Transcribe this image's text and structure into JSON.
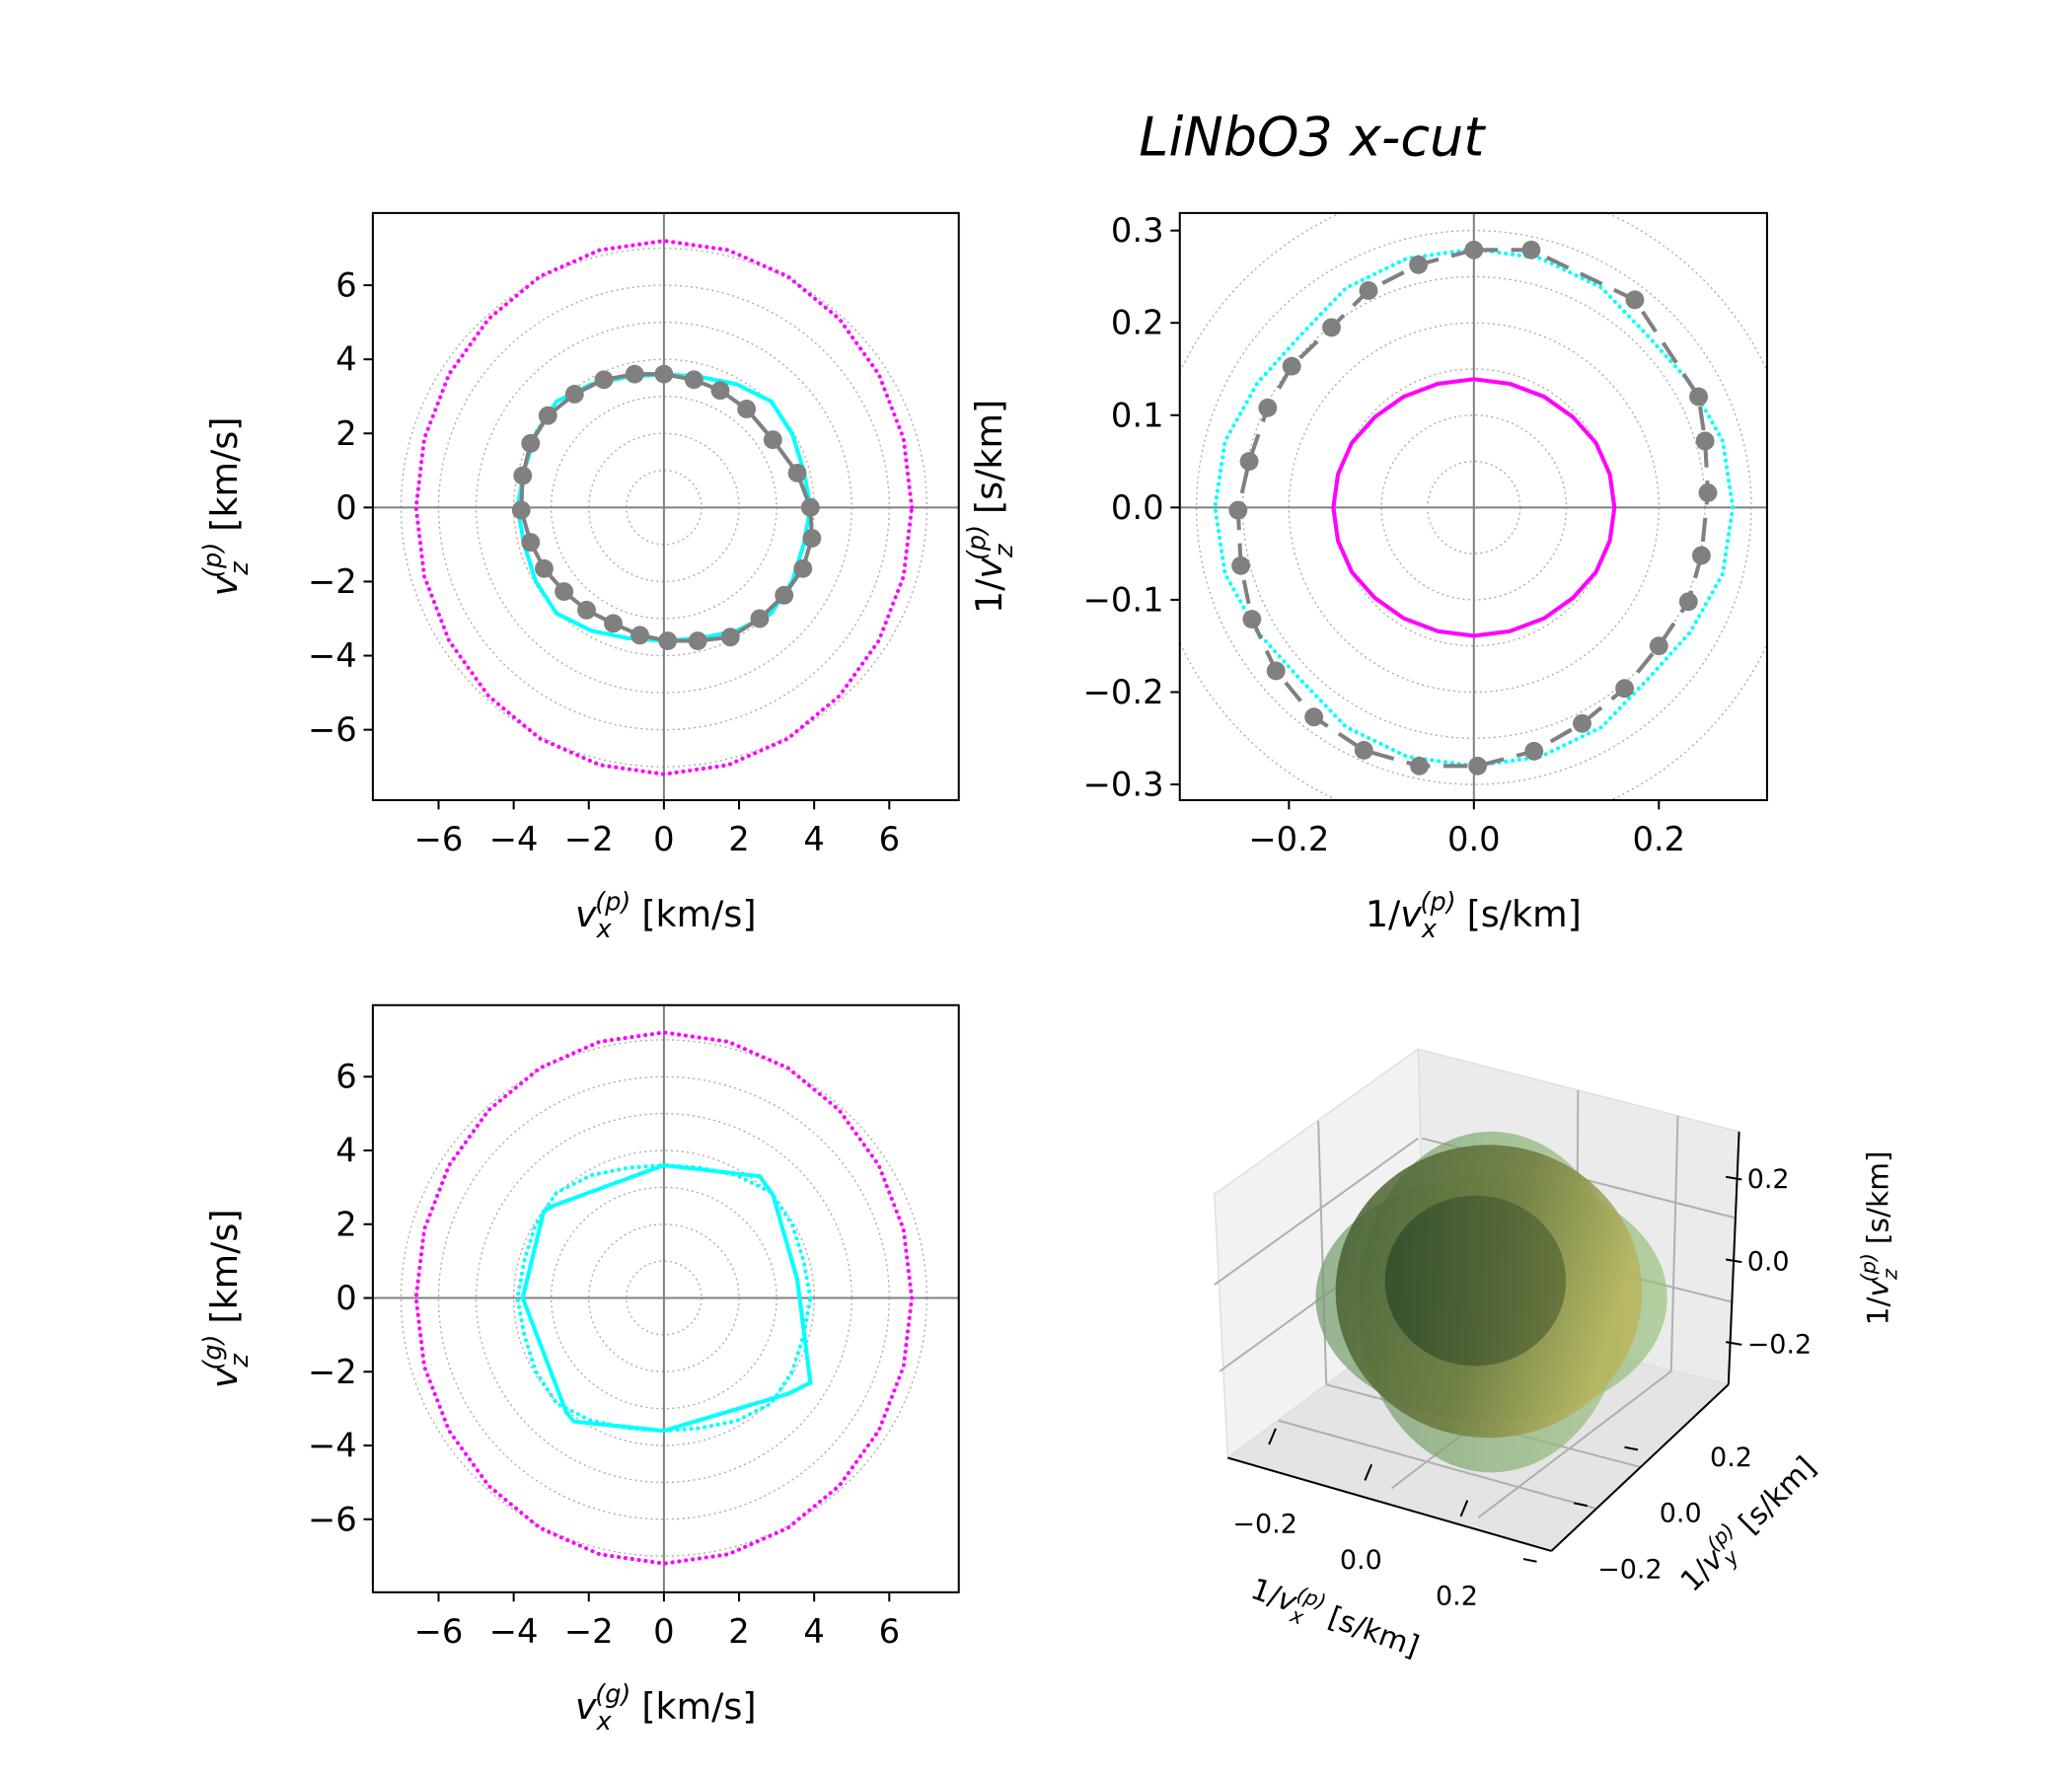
{
  "title": "LiNbO3 x-cut",
  "chart_data": [
    {
      "type": "line",
      "xlabel": {
        "symbol": "v",
        "sub": "x",
        "sup": "(p)",
        "unit": "[km/s]"
      },
      "ylabel": {
        "symbol": "v",
        "sub": "z",
        "sup": "(p)",
        "unit": "[km/s]"
      },
      "xlim": [
        -7.75,
        7.85
      ],
      "ylim": [
        -7.9,
        7.95
      ],
      "xticks": [
        {
          "value": -6,
          "label": "−6"
        },
        {
          "value": -4,
          "label": "−4"
        },
        {
          "value": -2,
          "label": "−2"
        },
        0,
        2,
        4,
        6
      ],
      "yticks": [
        {
          "value": -6,
          "label": "−6"
        },
        {
          "value": -4,
          "label": "−4"
        },
        {
          "value": -2,
          "label": "−2"
        },
        0,
        2,
        4,
        6
      ],
      "rgrid": [
        1,
        2,
        3,
        4,
        5,
        6,
        7
      ],
      "series": [
        {
          "color": "#ff00ff",
          "style": "dotted",
          "x": [
            6.6,
            6.38,
            5.72,
            4.67,
            3.3,
            1.71,
            0,
            -1.71,
            -3.3,
            -4.67,
            -5.72,
            -6.38,
            -6.6,
            -6.38,
            -5.72,
            -4.67,
            -3.3,
            -1.71,
            0,
            1.71,
            3.3,
            4.67,
            5.72,
            6.38
          ],
          "y": [
            0,
            1.86,
            3.6,
            5.09,
            6.24,
            6.95,
            7.2,
            6.95,
            6.24,
            5.09,
            3.6,
            1.86,
            0,
            -1.86,
            -3.6,
            -5.09,
            -6.24,
            -6.95,
            -7.2,
            -6.95,
            -6.24,
            -5.09,
            -3.6,
            -1.86
          ]
        },
        {
          "color": "#00ffff",
          "style": "solid",
          "x": [
            3.9,
            3.72,
            3.42,
            2.86,
            1.93,
            0.95,
            0,
            -0.95,
            -1.93,
            -2.86,
            -3.42,
            -3.72,
            -3.9,
            -3.72,
            -3.42,
            -2.86,
            -1.93,
            -0.95,
            0,
            0.95,
            1.93,
            2.86,
            3.42,
            3.72
          ],
          "y": [
            0,
            1.0,
            1.98,
            2.86,
            3.33,
            3.53,
            3.6,
            3.53,
            3.33,
            2.86,
            1.98,
            1.0,
            0,
            -1.0,
            -1.98,
            -2.86,
            -3.33,
            -3.53,
            -3.6,
            -3.53,
            -3.33,
            -2.86,
            -1.98,
            -1.0
          ]
        },
        {
          "color": "#808080",
          "style": "markers",
          "line": "solid",
          "x": [
            0,
            0.8,
            1.5,
            2.2,
            2.9,
            3.55,
            3.9,
            3.94,
            3.7,
            3.2,
            2.55,
            1.77,
            0.9,
            0.1,
            -0.64,
            -1.35,
            -2.06,
            -2.66,
            -3.19,
            -3.55,
            -3.8,
            -3.76,
            -3.55,
            -3.09,
            -2.38,
            -1.6,
            -0.78
          ],
          "y": [
            3.6,
            3.45,
            3.16,
            2.66,
            1.83,
            0.93,
            0,
            -0.83,
            -1.65,
            -2.37,
            -3.0,
            -3.5,
            -3.6,
            -3.6,
            -3.45,
            -3.13,
            -2.77,
            -2.27,
            -1.65,
            -0.94,
            -0.07,
            0.86,
            1.73,
            2.48,
            3.06,
            3.45,
            3.6
          ]
        }
      ]
    },
    {
      "type": "line",
      "xlabel": {
        "prefix": "1/",
        "symbol": "v",
        "sub": "x",
        "sup": "(p)",
        "unit": "[s/km]"
      },
      "ylabel": {
        "prefix": "1/",
        "symbol": "v",
        "sub": "z",
        "sup": "(p)",
        "unit": "[s/km]"
      },
      "xlim": [
        -0.318,
        0.317
      ],
      "ylim": [
        -0.317,
        0.319
      ],
      "xticks": [
        {
          "value": -0.2,
          "label": "−0.2"
        },
        {
          "value": 0,
          "label": "0.0"
        },
        0.2
      ],
      "yticks": [
        {
          "value": -0.3,
          "label": "−0.3"
        },
        {
          "value": -0.2,
          "label": "−0.2"
        },
        {
          "value": -0.1,
          "label": "−0.1"
        },
        {
          "value": 0,
          "label": "0.0"
        },
        0.1,
        0.2,
        0.3
      ],
      "rgrid": [
        0.05,
        0.1,
        0.15,
        0.2,
        0.25,
        0.3,
        0.35
      ],
      "series": [
        {
          "color": "#ff00ff",
          "style": "solid",
          "x": [
            0.152,
            0.147,
            0.132,
            0.107,
            0.076,
            0.039,
            0,
            -0.039,
            -0.076,
            -0.107,
            -0.132,
            -0.147,
            -0.152,
            -0.147,
            -0.132,
            -0.107,
            -0.076,
            -0.039,
            0,
            0.039,
            0.076,
            0.107,
            0.132,
            0.147
          ],
          "y": [
            0,
            0.036,
            0.07,
            0.098,
            0.12,
            0.134,
            0.139,
            0.134,
            0.12,
            0.098,
            0.07,
            0.036,
            0,
            -0.036,
            -0.07,
            -0.098,
            -0.12,
            -0.134,
            -0.139,
            -0.134,
            -0.12,
            -0.098,
            -0.07,
            -0.036
          ]
        },
        {
          "color": "#00ffff",
          "style": "dotted",
          "x": [
            0.28,
            0.269,
            0.234,
            0.187,
            0.138,
            0.072,
            0,
            -0.072,
            -0.138,
            -0.187,
            -0.234,
            -0.269,
            -0.28,
            -0.269,
            -0.234,
            -0.187,
            -0.138,
            -0.072,
            0,
            0.072,
            0.138,
            0.187,
            0.234,
            0.269
          ],
          "y": [
            0,
            0.072,
            0.135,
            0.187,
            0.238,
            0.27,
            0.28,
            0.27,
            0.238,
            0.187,
            0.135,
            0.072,
            0,
            -0.072,
            -0.135,
            -0.187,
            -0.238,
            -0.27,
            -0.28,
            -0.27,
            -0.238,
            -0.187,
            -0.135,
            -0.072
          ]
        },
        {
          "color": "#808080",
          "style": "markers",
          "line": "dashed",
          "x": [
            0,
            0.062,
            0.174,
            0.243,
            0.25,
            0.253,
            0.246,
            0.232,
            0.2,
            0.163,
            0.117,
            0.065,
            0.004,
            -0.059,
            -0.119,
            -0.173,
            -0.214,
            -0.24,
            -0.252,
            -0.255,
            -0.243,
            -0.223,
            -0.197,
            -0.154,
            -0.114,
            -0.06
          ],
          "y": [
            0.279,
            0.279,
            0.225,
            0.12,
            0.072,
            0.016,
            -0.052,
            -0.102,
            -0.15,
            -0.196,
            -0.234,
            -0.264,
            -0.28,
            -0.28,
            -0.263,
            -0.227,
            -0.177,
            -0.121,
            -0.063,
            -0.003,
            0.05,
            0.108,
            0.153,
            0.195,
            0.235,
            0.263
          ]
        }
      ]
    },
    {
      "type": "line",
      "xlabel": {
        "symbol": "v",
        "sub": "x",
        "sup": "(g)",
        "unit": "[km/s]"
      },
      "ylabel": {
        "symbol": "v",
        "sub": "z",
        "sup": "(g)",
        "unit": "[km/s]"
      },
      "xlim": [
        -7.75,
        7.85
      ],
      "ylim": [
        -7.98,
        7.94
      ],
      "xticks": [
        {
          "value": -6,
          "label": "−6"
        },
        {
          "value": -4,
          "label": "−4"
        },
        {
          "value": -2,
          "label": "−2"
        },
        0,
        2,
        4,
        6
      ],
      "yticks": [
        {
          "value": -6,
          "label": "−6"
        },
        {
          "value": -4,
          "label": "−4"
        },
        {
          "value": -2,
          "label": "−2"
        },
        0,
        2,
        4,
        6
      ],
      "rgrid": [
        1,
        2,
        3,
        4,
        5,
        6,
        7
      ],
      "series": [
        {
          "color": "#ff00ff",
          "style": "dotted",
          "x": [
            6.6,
            6.38,
            5.72,
            4.67,
            3.3,
            1.71,
            0,
            -1.71,
            -3.3,
            -4.67,
            -5.72,
            -6.38,
            -6.6,
            -6.38,
            -5.72,
            -4.67,
            -3.3,
            -1.71,
            0,
            1.71,
            3.3,
            4.67,
            5.72,
            6.38
          ],
          "y": [
            0,
            1.86,
            3.6,
            5.09,
            6.24,
            6.95,
            7.2,
            6.95,
            6.24,
            5.09,
            3.6,
            1.86,
            0,
            -1.86,
            -3.6,
            -5.09,
            -6.24,
            -6.95,
            -7.2,
            -6.95,
            -6.24,
            -5.09,
            -3.6,
            -1.86
          ]
        },
        {
          "color": "#00ffff",
          "style": "dotted",
          "x": [
            3.9,
            3.72,
            3.42,
            2.86,
            1.93,
            0.95,
            0,
            -0.95,
            -1.93,
            -2.86,
            -3.42,
            -3.72,
            -3.9,
            -3.72,
            -3.42,
            -2.86,
            -1.93,
            -0.95,
            0,
            0.95,
            1.93,
            2.86,
            3.42,
            3.72
          ],
          "y": [
            0,
            1.0,
            1.98,
            2.86,
            3.33,
            3.53,
            3.6,
            3.53,
            3.33,
            2.86,
            1.98,
            1.0,
            0,
            -1.0,
            -1.98,
            -2.86,
            -3.33,
            -3.53,
            -3.6,
            -3.53,
            -3.33,
            -2.86,
            -1.98,
            -1.0
          ]
        },
        {
          "color": "#00ffff",
          "style": "solid",
          "x": [
            0,
            2.55,
            2.9,
            3.55,
            3.9,
            3.3,
            0,
            -2.4,
            -2.6,
            -3.76,
            -3.2,
            -2.95
          ],
          "y": [
            3.6,
            3.3,
            2.8,
            0.5,
            -2.3,
            -2.6,
            -3.6,
            -3.35,
            -3.1,
            0,
            2.35,
            2.5
          ]
        }
      ]
    },
    {
      "type": "surface3d",
      "xlabel": {
        "prefix": "1/",
        "symbol": "v",
        "sub": "x",
        "sup": "(p)",
        "unit": "[s/km]"
      },
      "ylabel": {
        "prefix": "1/",
        "symbol": "v",
        "sub": "y",
        "sup": "(p)",
        "unit": "[s/km]"
      },
      "zlabel": {
        "prefix": "1/",
        "symbol": "v",
        "sub": "z",
        "sup": "(p)",
        "unit": "[s/km]"
      },
      "xticks": [
        {
          "value": -0.2,
          "label": "−0.2"
        },
        {
          "value": 0,
          "label": "0.0"
        },
        0.2
      ],
      "yticks": [
        {
          "value": -0.2,
          "label": "−0.2"
        },
        {
          "value": 0,
          "label": "0.0"
        },
        0.2
      ],
      "zticks": [
        {
          "value": -0.2,
          "label": "−0.2"
        },
        {
          "value": 0,
          "label": "0.0"
        },
        0.2
      ]
    }
  ]
}
